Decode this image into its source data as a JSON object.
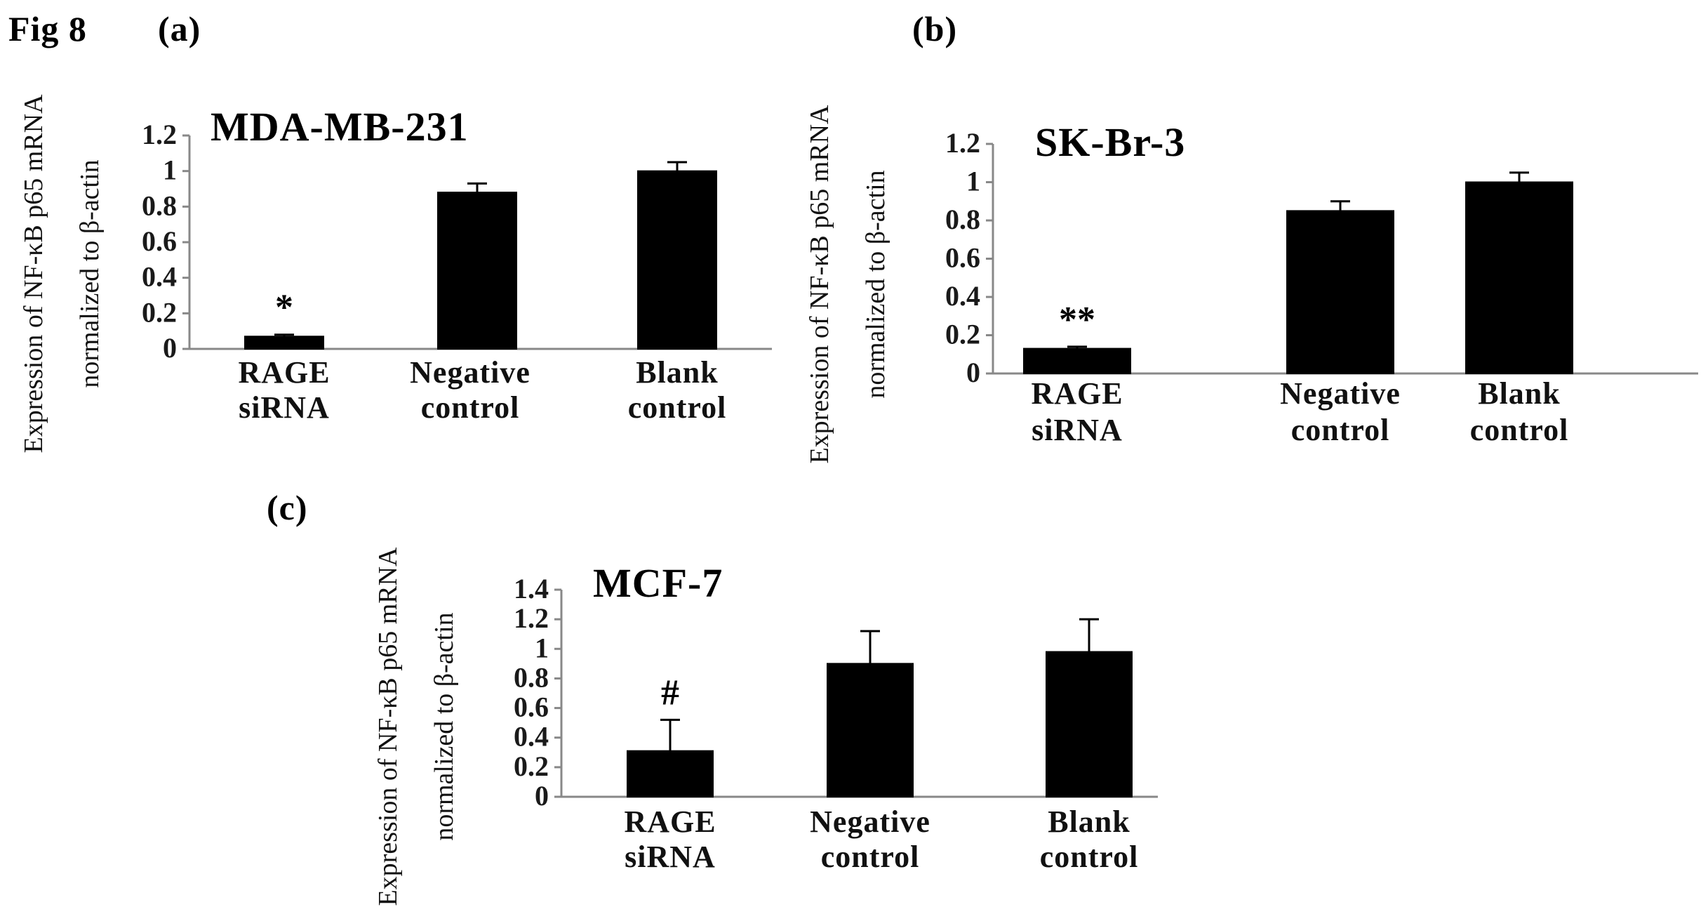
{
  "figure_label": "Fig 8",
  "chart_data": [
    {
      "type": "bar",
      "panel": "(a)",
      "title": "MDA-MB-231",
      "ylabel_line1": "Expression of NF-κB p65 mRNA",
      "ylabel_line2": "normalized to β-actin",
      "categories": [
        [
          "RAGE",
          "siRNA"
        ],
        [
          "Negative",
          "control"
        ],
        [
          "Blank",
          "control"
        ]
      ],
      "values": [
        0.07,
        0.88,
        1.0
      ],
      "errors": [
        0.01,
        0.05,
        0.05
      ],
      "annotations": [
        "*",
        "",
        ""
      ],
      "yticks": [
        "0",
        "0.2",
        "0.4",
        "0.6",
        "0.8",
        "1",
        "1.2"
      ],
      "ylim": [
        0,
        1.2
      ],
      "grid": false,
      "bar_color": "#000000"
    },
    {
      "type": "bar",
      "panel": "(b)",
      "title": "SK-Br-3",
      "ylabel_line1": "Expression of NF-κB p65 mRNA",
      "ylabel_line2": "normalized to β-actin",
      "categories": [
        [
          "RAGE",
          "siRNA"
        ],
        [
          "Negative",
          "control"
        ],
        [
          "Blank",
          "control"
        ]
      ],
      "values": [
        0.13,
        0.85,
        1.0
      ],
      "errors": [
        0.01,
        0.05,
        0.05
      ],
      "annotations": [
        "**",
        "",
        ""
      ],
      "yticks": [
        "0",
        "0.2",
        "0.4",
        "0.6",
        "0.8",
        "1",
        "1.2"
      ],
      "ylim": [
        0,
        1.2
      ],
      "grid": false,
      "bar_color": "#000000"
    },
    {
      "type": "bar",
      "panel": "(c)",
      "title": "MCF-7",
      "ylabel_line1": "Expression of NF-κB p65 mRNA",
      "ylabel_line2": "normalized to β-actin",
      "categories": [
        [
          "RAGE",
          "siRNA"
        ],
        [
          "Negative",
          "control"
        ],
        [
          "Blank",
          "control"
        ]
      ],
      "values": [
        0.31,
        0.9,
        0.98
      ],
      "errors": [
        0.21,
        0.22,
        0.22
      ],
      "annotations": [
        "#",
        "",
        ""
      ],
      "yticks": [
        "0",
        "0.2",
        "0.4",
        "0.6",
        "0.8",
        "1",
        "1.2",
        "1.4"
      ],
      "ylim": [
        0,
        1.4
      ],
      "grid": false,
      "bar_color": "#000000"
    }
  ]
}
